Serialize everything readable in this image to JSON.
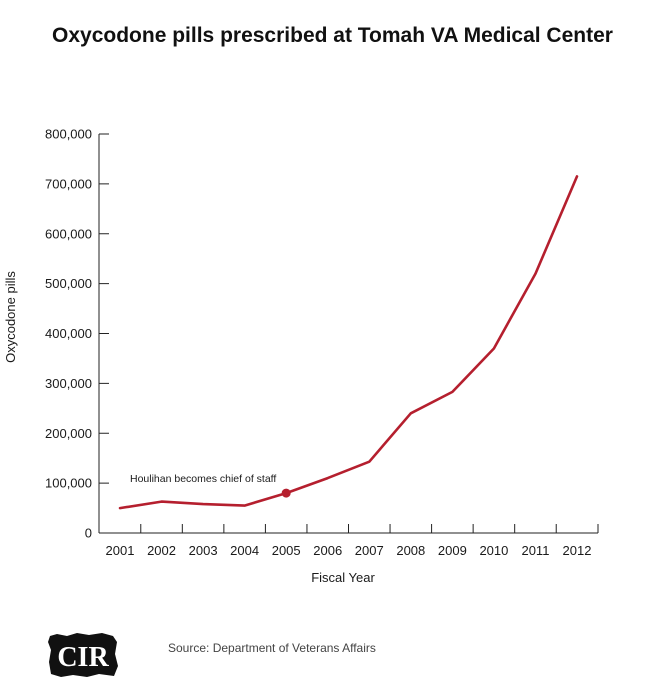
{
  "title": "Oxycodone pills prescribed at Tomah VA Medical Center",
  "source": "Source: Department of Veterans Affairs",
  "logo": {
    "name": "CIR"
  },
  "colors": {
    "line": "#b51f2e",
    "axis": "#222222"
  },
  "chart_data": {
    "type": "line",
    "title": "Oxycodone pills prescribed at Tomah VA Medical Center",
    "xlabel": "Fiscal Year",
    "ylabel": "Oxycodone pills",
    "ylim": [
      0,
      800000
    ],
    "yticks": [
      0,
      100000,
      200000,
      300000,
      400000,
      500000,
      600000,
      700000,
      800000
    ],
    "ytick_labels": [
      "0",
      "100,000",
      "200,000",
      "300,000",
      "400,000",
      "500,000",
      "600,000",
      "700,000",
      "800,000"
    ],
    "categories": [
      "2001",
      "2002",
      "2003",
      "2004",
      "2005",
      "2006",
      "2007",
      "2008",
      "2009",
      "2010",
      "2011",
      "2012"
    ],
    "series": [
      {
        "values": [
          50000,
          63000,
          58000,
          55000,
          80000,
          110000,
          143000,
          240000,
          283000,
          370000,
          520000,
          715000
        ]
      }
    ],
    "annotations": [
      {
        "text": "Houlihan becomes chief of staff",
        "x": "2005",
        "y": 80000
      }
    ],
    "grid": false,
    "legend": "none"
  }
}
